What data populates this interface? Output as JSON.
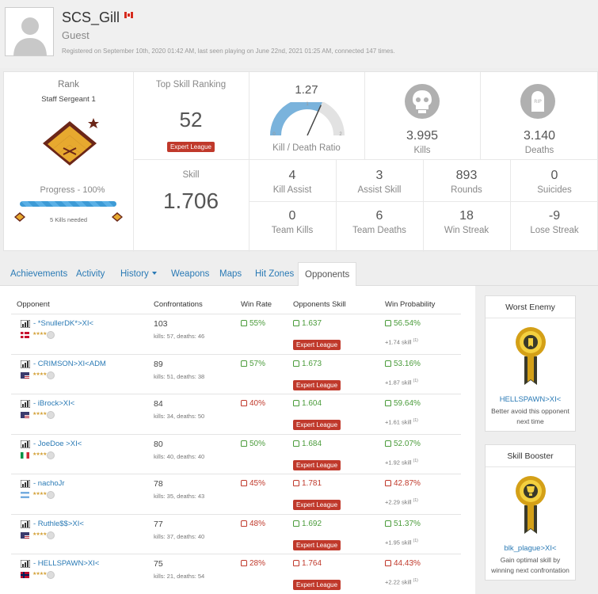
{
  "profile": {
    "name": "SCS_Gill",
    "role": "Guest",
    "registration": "Registered on September 10th, 2020 01:42 AM, last seen playing on June 22nd, 2021 01:25 AM, connected 147 times."
  },
  "rank": {
    "label": "Rank",
    "name": "Staff Sergeant 1",
    "progress_label": "Progress - 100%",
    "progress_fraction": 1.0,
    "kills_needed": "5 Kills needed"
  },
  "top_skill": {
    "label": "Top Skill Ranking",
    "value": "52",
    "badge": "Expert League"
  },
  "skill": {
    "label": "Skill",
    "value": "1.706"
  },
  "kdr": {
    "value": "1.27",
    "label": "Kill / Death Ratio",
    "min": "0",
    "mid": "1",
    "max": "2",
    "ratio": 1.27
  },
  "kills": {
    "value": "3.995",
    "label": "Kills"
  },
  "deaths": {
    "value": "3.140",
    "label": "Deaths",
    "tombstone_text": "RIP"
  },
  "grid": [
    {
      "value": "4",
      "label": "Kill Assist"
    },
    {
      "value": "3",
      "label": "Assist Skill"
    },
    {
      "value": "893",
      "label": "Rounds"
    },
    {
      "value": "0",
      "label": "Suicides"
    },
    {
      "value": "0",
      "label": "Team Kills"
    },
    {
      "value": "6",
      "label": "Team Deaths"
    },
    {
      "value": "18",
      "label": "Win Streak"
    },
    {
      "value": "-9",
      "label": "Lose Streak"
    }
  ],
  "tabs": [
    "Achievements",
    "Activity",
    "History",
    "Weapons",
    "Maps",
    "Hit Zones",
    "Opponents"
  ],
  "table": {
    "headers": [
      "Opponent",
      "Confrontations",
      "Win Rate",
      "Opponents Skill",
      "Win Probability"
    ],
    "league_badge": "Expert League",
    "rows": [
      {
        "name": "- *SnullerDK*>XI<",
        "flag": "dk",
        "conf": "103",
        "kd": "kills: 57, deaths: 46",
        "wr": "55%",
        "wr_good": true,
        "os": "1.637",
        "os_good": true,
        "wp": "56.54%",
        "wp_good": true,
        "sk": "+1.74 skill",
        "sk_sup": "(1)"
      },
      {
        "name": "- CRIMSON>XI<ADM",
        "flag": "us",
        "conf": "89",
        "kd": "kills: 51, deaths: 38",
        "wr": "57%",
        "wr_good": true,
        "os": "1.673",
        "os_good": true,
        "wp": "53.16%",
        "wp_good": true,
        "sk": "+1.87 skill",
        "sk_sup": "(1)"
      },
      {
        "name": "- iBrock>XI<",
        "flag": "us",
        "conf": "84",
        "kd": "kills: 34, deaths: 50",
        "wr": "40%",
        "wr_good": false,
        "os": "1.604",
        "os_good": true,
        "wp": "59.64%",
        "wp_good": true,
        "sk": "+1.61 skill",
        "sk_sup": "(1)"
      },
      {
        "name": "- JoeDoe >XI<",
        "flag": "it",
        "conf": "80",
        "kd": "kills: 40, deaths: 40",
        "wr": "50%",
        "wr_good": true,
        "os": "1.684",
        "os_good": true,
        "wp": "52.07%",
        "wp_good": true,
        "sk": "+1.92 skill",
        "sk_sup": "(1)"
      },
      {
        "name": "- nachoJr",
        "flag": "ar",
        "conf": "78",
        "kd": "kills: 35, deaths: 43",
        "wr": "45%",
        "wr_good": false,
        "os": "1.781",
        "os_good": false,
        "wp": "42.87%",
        "wp_good": false,
        "sk": "+2.29 skill",
        "sk_sup": "(1)"
      },
      {
        "name": "- Ruthle$$>XI<",
        "flag": "us",
        "conf": "77",
        "kd": "kills: 37, deaths: 40",
        "wr": "48%",
        "wr_good": false,
        "os": "1.692",
        "os_good": true,
        "wp": "51.37%",
        "wp_good": true,
        "sk": "+1.95 skill",
        "sk_sup": "(1)"
      },
      {
        "name": "- HELLSPAWN>XI<",
        "flag": "no",
        "conf": "75",
        "kd": "kills: 21, deaths: 54",
        "wr": "28%",
        "wr_good": false,
        "os": "1.764",
        "os_good": false,
        "wp": "44.43%",
        "wp_good": false,
        "sk": "+2.22 skill",
        "sk_sup": "(1)"
      }
    ]
  },
  "worst_enemy": {
    "title": "Worst Enemy",
    "name": "HELLSPAWN>XI<",
    "text1": "Better avoid this opponent",
    "text2": "next time"
  },
  "skill_booster": {
    "title": "Skill Booster",
    "name": "blk_plague>XI<",
    "text1": "Gain optimal skill by",
    "text2": "winning next confrontation"
  },
  "colors": {
    "link": "#2a7ab5",
    "good": "#4a9b3a",
    "bad": "#c0392b",
    "progress": "#3d9bd6",
    "medal_gold": "#d4a017"
  }
}
